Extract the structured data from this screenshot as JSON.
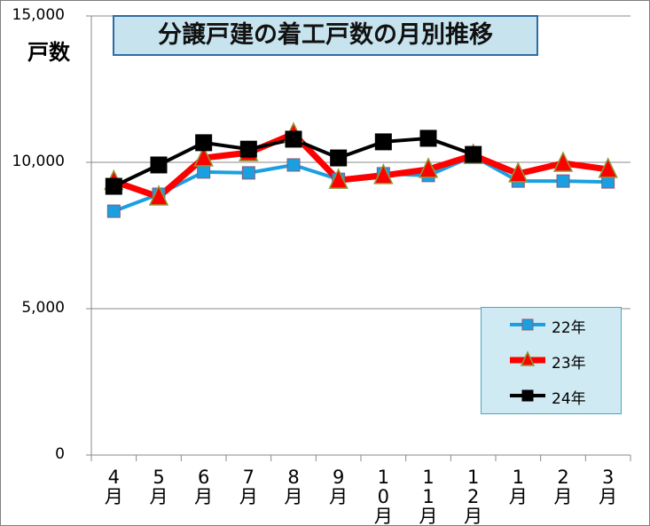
{
  "chart_data": {
    "type": "line",
    "title": "分譲戸建の着工戸数の月別推移",
    "ylabel": "戸数",
    "ylim": [
      0,
      15000
    ],
    "yticks": [
      "0",
      "5,000",
      "10,000",
      "15,000"
    ],
    "categories": [
      "4月",
      "5月",
      "6月",
      "7月",
      "8月",
      "9月",
      "10月",
      "11月",
      "12月",
      "1月",
      "2月",
      "3月"
    ],
    "legend_position": "bottom-right",
    "series": [
      {
        "name": "22年",
        "color": "#1a9fe0",
        "marker": "square",
        "values": [
          8330,
          8910,
          9670,
          9640,
          9910,
          9420,
          9610,
          9550,
          10210,
          9360,
          9360,
          9330
        ]
      },
      {
        "name": "23年",
        "color": "#ff0000",
        "marker": "triangle",
        "values": [
          9350,
          8820,
          10150,
          10330,
          10970,
          9390,
          9550,
          9760,
          10240,
          9610,
          9970,
          9760
        ]
      },
      {
        "name": "24年",
        "color": "#000000",
        "marker": "square",
        "values": [
          9180,
          9910,
          10670,
          10450,
          10790,
          10150,
          10700,
          10820,
          10270,
          null,
          null,
          null
        ]
      }
    ]
  }
}
